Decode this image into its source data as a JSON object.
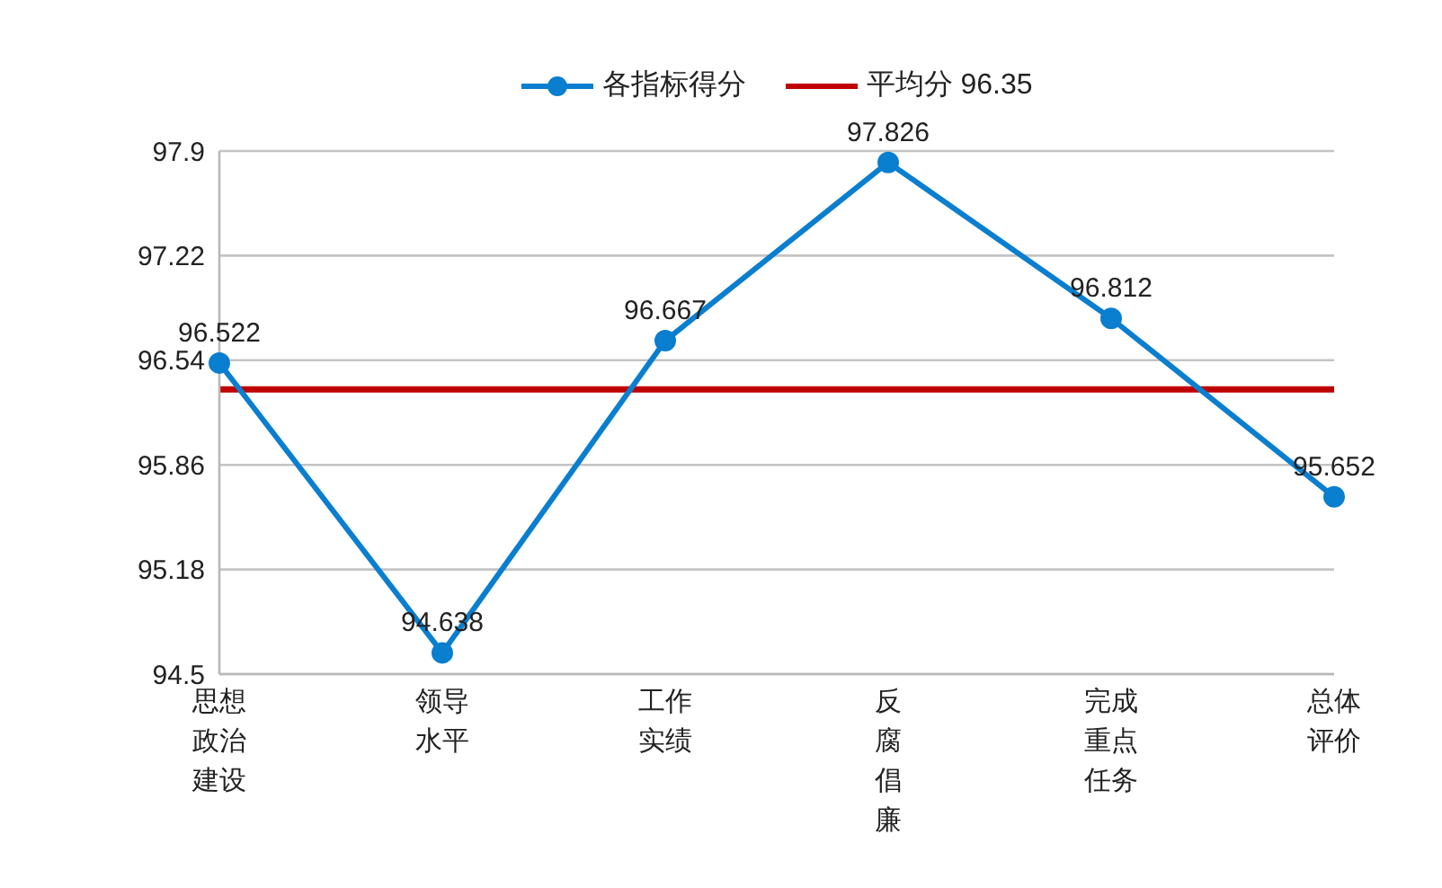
{
  "chart_data": {
    "type": "line",
    "categories": [
      "思想政治建设",
      "领导水平",
      "工作实绩",
      "反腐倡廉",
      "完成重点任务",
      "总体评价"
    ],
    "series": [
      {
        "name": "各指标得分",
        "color": "#0a7ecf",
        "values": [
          96.522,
          94.638,
          96.667,
          97.826,
          96.812,
          95.652
        ]
      }
    ],
    "ylim": [
      94.5,
      97.9
    ],
    "yticks": [
      94.5,
      95.18,
      95.86,
      96.54,
      97.22,
      97.9
    ],
    "grid": "y",
    "legend": "top",
    "marker": "circle",
    "line_style": "solid",
    "data_labels": true,
    "ref_lines": [
      {
        "axis": "y",
        "value": 96.35,
        "label": "平均分 96.35",
        "color": "#c00000"
      }
    ]
  }
}
